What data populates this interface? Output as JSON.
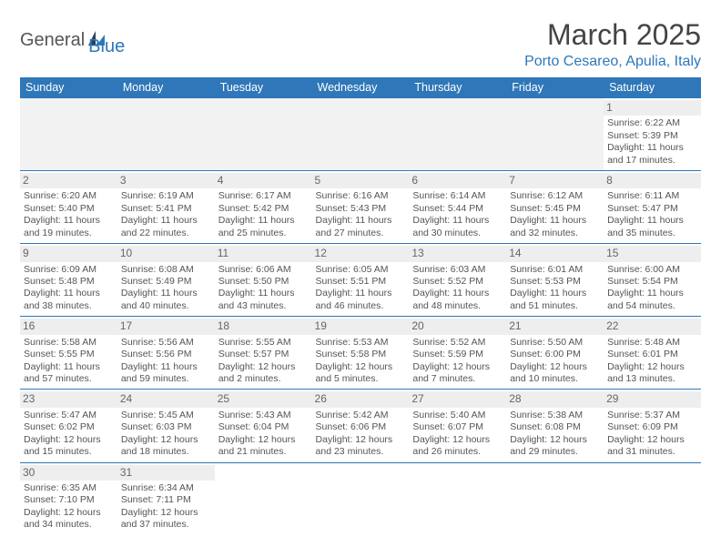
{
  "brand": {
    "name_a": "General",
    "name_b": "Blue"
  },
  "title": "March 2025",
  "location": "Porto Cesareo, Apulia, Italy",
  "colors": {
    "accent": "#2f77b8",
    "text": "#555555",
    "header_bg": "#2f77b8",
    "daynum_bg": "#eeeeee",
    "background": "#ffffff"
  },
  "weekday_headers": [
    "Sunday",
    "Monday",
    "Tuesday",
    "Wednesday",
    "Thursday",
    "Friday",
    "Saturday"
  ],
  "weeks": [
    [
      null,
      null,
      null,
      null,
      null,
      null,
      {
        "n": "1",
        "sr": "Sunrise: 6:22 AM",
        "ss": "Sunset: 5:39 PM",
        "d1": "Daylight: 11 hours",
        "d2": "and 17 minutes."
      }
    ],
    [
      {
        "n": "2",
        "sr": "Sunrise: 6:20 AM",
        "ss": "Sunset: 5:40 PM",
        "d1": "Daylight: 11 hours",
        "d2": "and 19 minutes."
      },
      {
        "n": "3",
        "sr": "Sunrise: 6:19 AM",
        "ss": "Sunset: 5:41 PM",
        "d1": "Daylight: 11 hours",
        "d2": "and 22 minutes."
      },
      {
        "n": "4",
        "sr": "Sunrise: 6:17 AM",
        "ss": "Sunset: 5:42 PM",
        "d1": "Daylight: 11 hours",
        "d2": "and 25 minutes."
      },
      {
        "n": "5",
        "sr": "Sunrise: 6:16 AM",
        "ss": "Sunset: 5:43 PM",
        "d1": "Daylight: 11 hours",
        "d2": "and 27 minutes."
      },
      {
        "n": "6",
        "sr": "Sunrise: 6:14 AM",
        "ss": "Sunset: 5:44 PM",
        "d1": "Daylight: 11 hours",
        "d2": "and 30 minutes."
      },
      {
        "n": "7",
        "sr": "Sunrise: 6:12 AM",
        "ss": "Sunset: 5:45 PM",
        "d1": "Daylight: 11 hours",
        "d2": "and 32 minutes."
      },
      {
        "n": "8",
        "sr": "Sunrise: 6:11 AM",
        "ss": "Sunset: 5:47 PM",
        "d1": "Daylight: 11 hours",
        "d2": "and 35 minutes."
      }
    ],
    [
      {
        "n": "9",
        "sr": "Sunrise: 6:09 AM",
        "ss": "Sunset: 5:48 PM",
        "d1": "Daylight: 11 hours",
        "d2": "and 38 minutes."
      },
      {
        "n": "10",
        "sr": "Sunrise: 6:08 AM",
        "ss": "Sunset: 5:49 PM",
        "d1": "Daylight: 11 hours",
        "d2": "and 40 minutes."
      },
      {
        "n": "11",
        "sr": "Sunrise: 6:06 AM",
        "ss": "Sunset: 5:50 PM",
        "d1": "Daylight: 11 hours",
        "d2": "and 43 minutes."
      },
      {
        "n": "12",
        "sr": "Sunrise: 6:05 AM",
        "ss": "Sunset: 5:51 PM",
        "d1": "Daylight: 11 hours",
        "d2": "and 46 minutes."
      },
      {
        "n": "13",
        "sr": "Sunrise: 6:03 AM",
        "ss": "Sunset: 5:52 PM",
        "d1": "Daylight: 11 hours",
        "d2": "and 48 minutes."
      },
      {
        "n": "14",
        "sr": "Sunrise: 6:01 AM",
        "ss": "Sunset: 5:53 PM",
        "d1": "Daylight: 11 hours",
        "d2": "and 51 minutes."
      },
      {
        "n": "15",
        "sr": "Sunrise: 6:00 AM",
        "ss": "Sunset: 5:54 PM",
        "d1": "Daylight: 11 hours",
        "d2": "and 54 minutes."
      }
    ],
    [
      {
        "n": "16",
        "sr": "Sunrise: 5:58 AM",
        "ss": "Sunset: 5:55 PM",
        "d1": "Daylight: 11 hours",
        "d2": "and 57 minutes."
      },
      {
        "n": "17",
        "sr": "Sunrise: 5:56 AM",
        "ss": "Sunset: 5:56 PM",
        "d1": "Daylight: 11 hours",
        "d2": "and 59 minutes."
      },
      {
        "n": "18",
        "sr": "Sunrise: 5:55 AM",
        "ss": "Sunset: 5:57 PM",
        "d1": "Daylight: 12 hours",
        "d2": "and 2 minutes."
      },
      {
        "n": "19",
        "sr": "Sunrise: 5:53 AM",
        "ss": "Sunset: 5:58 PM",
        "d1": "Daylight: 12 hours",
        "d2": "and 5 minutes."
      },
      {
        "n": "20",
        "sr": "Sunrise: 5:52 AM",
        "ss": "Sunset: 5:59 PM",
        "d1": "Daylight: 12 hours",
        "d2": "and 7 minutes."
      },
      {
        "n": "21",
        "sr": "Sunrise: 5:50 AM",
        "ss": "Sunset: 6:00 PM",
        "d1": "Daylight: 12 hours",
        "d2": "and 10 minutes."
      },
      {
        "n": "22",
        "sr": "Sunrise: 5:48 AM",
        "ss": "Sunset: 6:01 PM",
        "d1": "Daylight: 12 hours",
        "d2": "and 13 minutes."
      }
    ],
    [
      {
        "n": "23",
        "sr": "Sunrise: 5:47 AM",
        "ss": "Sunset: 6:02 PM",
        "d1": "Daylight: 12 hours",
        "d2": "and 15 minutes."
      },
      {
        "n": "24",
        "sr": "Sunrise: 5:45 AM",
        "ss": "Sunset: 6:03 PM",
        "d1": "Daylight: 12 hours",
        "d2": "and 18 minutes."
      },
      {
        "n": "25",
        "sr": "Sunrise: 5:43 AM",
        "ss": "Sunset: 6:04 PM",
        "d1": "Daylight: 12 hours",
        "d2": "and 21 minutes."
      },
      {
        "n": "26",
        "sr": "Sunrise: 5:42 AM",
        "ss": "Sunset: 6:06 PM",
        "d1": "Daylight: 12 hours",
        "d2": "and 23 minutes."
      },
      {
        "n": "27",
        "sr": "Sunrise: 5:40 AM",
        "ss": "Sunset: 6:07 PM",
        "d1": "Daylight: 12 hours",
        "d2": "and 26 minutes."
      },
      {
        "n": "28",
        "sr": "Sunrise: 5:38 AM",
        "ss": "Sunset: 6:08 PM",
        "d1": "Daylight: 12 hours",
        "d2": "and 29 minutes."
      },
      {
        "n": "29",
        "sr": "Sunrise: 5:37 AM",
        "ss": "Sunset: 6:09 PM",
        "d1": "Daylight: 12 hours",
        "d2": "and 31 minutes."
      }
    ],
    [
      {
        "n": "30",
        "sr": "Sunrise: 6:35 AM",
        "ss": "Sunset: 7:10 PM",
        "d1": "Daylight: 12 hours",
        "d2": "and 34 minutes."
      },
      {
        "n": "31",
        "sr": "Sunrise: 6:34 AM",
        "ss": "Sunset: 7:11 PM",
        "d1": "Daylight: 12 hours",
        "d2": "and 37 minutes."
      },
      null,
      null,
      null,
      null,
      null
    ]
  ]
}
